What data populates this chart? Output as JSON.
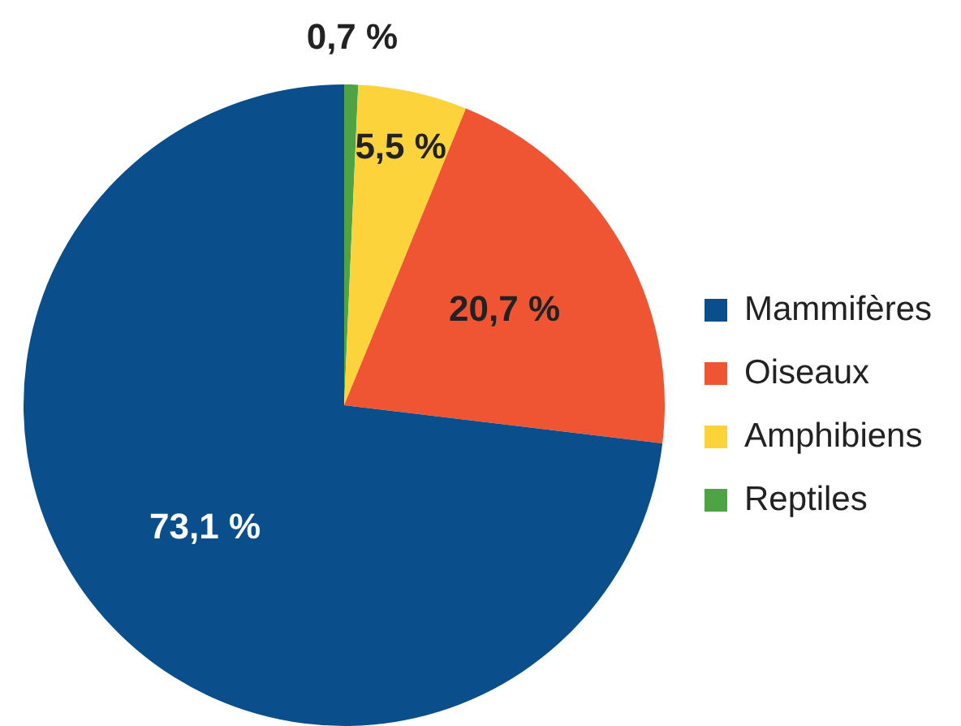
{
  "chart_data": {
    "type": "pie",
    "categories": [
      "Reptiles",
      "Amphibiens",
      "Oiseaux",
      "Mammifères"
    ],
    "values": [
      0.7,
      5.5,
      20.7,
      73.1
    ],
    "colors": [
      "#4ea345",
      "#fdd33b",
      "#ef5533",
      "#0a4f8c"
    ],
    "value_labels": [
      "0,7 %",
      "5,5 %",
      "20,7 %",
      "73,1 %"
    ],
    "legend": "right"
  }
}
